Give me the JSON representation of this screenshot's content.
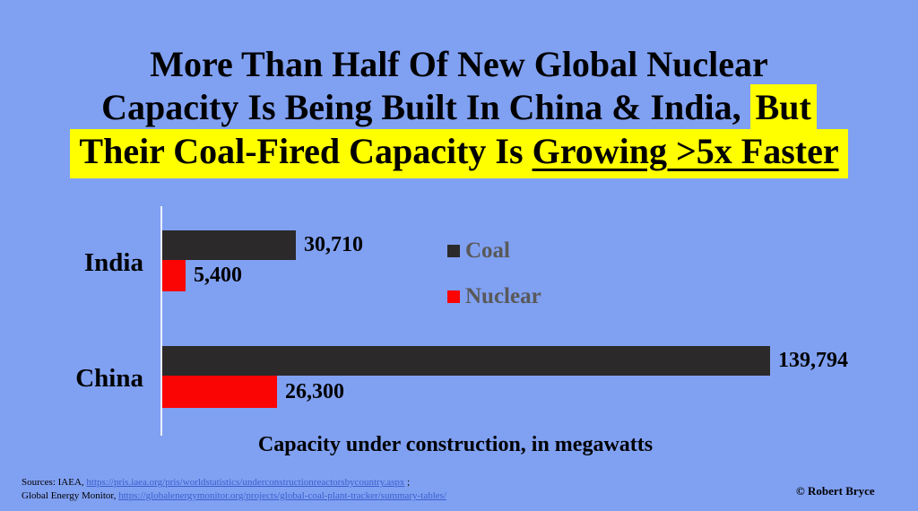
{
  "colors": {
    "background": "#80A0F2",
    "coal": "#2B292A",
    "nuclear": "#FB0404",
    "highlight": "#FFFF00",
    "legend_text": "#595959",
    "link": "#3A5FCD"
  },
  "title": {
    "line1": "More Than Half Of New Global Nuclear",
    "line2_plain": "Capacity Is Being Built In China & India,",
    "line2_highlight": "But",
    "line3_prefix": "Their Coal-Fired Capacity Is ",
    "line3_underlined": "Growing >5x Faster"
  },
  "chart_data": {
    "type": "bar",
    "orientation": "horizontal",
    "categories": [
      "India",
      "China"
    ],
    "series": [
      {
        "name": "Coal",
        "color": "#2B292A",
        "values": [
          30710,
          139794
        ],
        "labels": [
          "30,710",
          "139,794"
        ]
      },
      {
        "name": "Nuclear",
        "color": "#FB0404",
        "values": [
          5400,
          26300
        ],
        "labels": [
          "5,400",
          "26,300"
        ]
      }
    ],
    "xlabel": "Capacity under construction, in megawatts",
    "xlim": [
      0,
      145000
    ],
    "grid": false,
    "legend_position": "center-right"
  },
  "legend": {
    "items": [
      {
        "label": "Coal",
        "color": "#2B292A"
      },
      {
        "label": "Nuclear",
        "color": "#FB0404"
      }
    ]
  },
  "footer": {
    "sources_line1_prefix": "Sources: IAEA, ",
    "sources_line1_link": "https://pris.iaea.org/pris/worldstatistics/underconstructionreactorsbycountry.aspx",
    "sources_line1_suffix": " ;",
    "sources_line2_prefix": "Global Energy Monitor, ",
    "sources_line2_link": "https://globalenergymonitor.org/projects/global-coal-plant-tracker/summary-tables/",
    "copyright": "© Robert Bryce"
  }
}
